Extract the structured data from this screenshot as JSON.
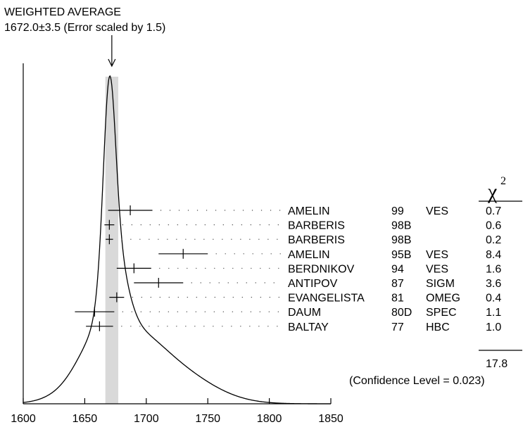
{
  "chart_data": {
    "type": "scatter",
    "title_line1": "WEIGHTED AVERAGE",
    "title_line2": "1672.0±3.5 (Error scaled by 1.5)",
    "weighted_average": 1672.0,
    "weighted_error": 3.5,
    "xlim": [
      1600,
      1850
    ],
    "x_ticks": [
      "1600",
      "1650",
      "1700",
      "1750",
      "1800",
      "1850"
    ],
    "x_tick_values": [
      1600,
      1650,
      1700,
      1750,
      1800,
      1850
    ],
    "chi2_label": "χ",
    "chi2_sup": "2",
    "measurements": [
      {
        "author": "AMELIN",
        "year": "99",
        "tech": "VES",
        "value": 1687,
        "error": 18,
        "chi2": "0.7"
      },
      {
        "author": "BARBERIS",
        "year": "98B",
        "tech": "",
        "value": 1670,
        "error": 4,
        "chi2": "0.6"
      },
      {
        "author": "BARBERIS",
        "year": "98B",
        "tech": "",
        "value": 1670,
        "error": 3,
        "chi2": "0.2"
      },
      {
        "author": "AMELIN",
        "year": "95B",
        "tech": "VES",
        "value": 1730,
        "error": 20,
        "chi2": "8.4"
      },
      {
        "author": "BERDNIKOV",
        "year": "94",
        "tech": "VES",
        "value": 1690,
        "error": 14,
        "chi2": "1.6"
      },
      {
        "author": "ANTIPOV",
        "year": "87",
        "tech": "SIGM",
        "value": 1710,
        "error": 20,
        "chi2": "3.6"
      },
      {
        "author": "EVANGELISTA",
        "year": "81",
        "tech": "OMEG",
        "value": 1676,
        "error": 6,
        "chi2": "0.4"
      },
      {
        "author": "DAUM",
        "year": "80D",
        "tech": "SPEC",
        "value": 1658,
        "error": 16,
        "chi2": "1.1"
      },
      {
        "author": "BALTAY",
        "year": "77",
        "tech": "HBC",
        "value": 1662,
        "error": 11,
        "chi2": "1.0"
      }
    ],
    "chi2_total": "17.8",
    "confidence_text": "(Confidence Level = 0.023)"
  }
}
